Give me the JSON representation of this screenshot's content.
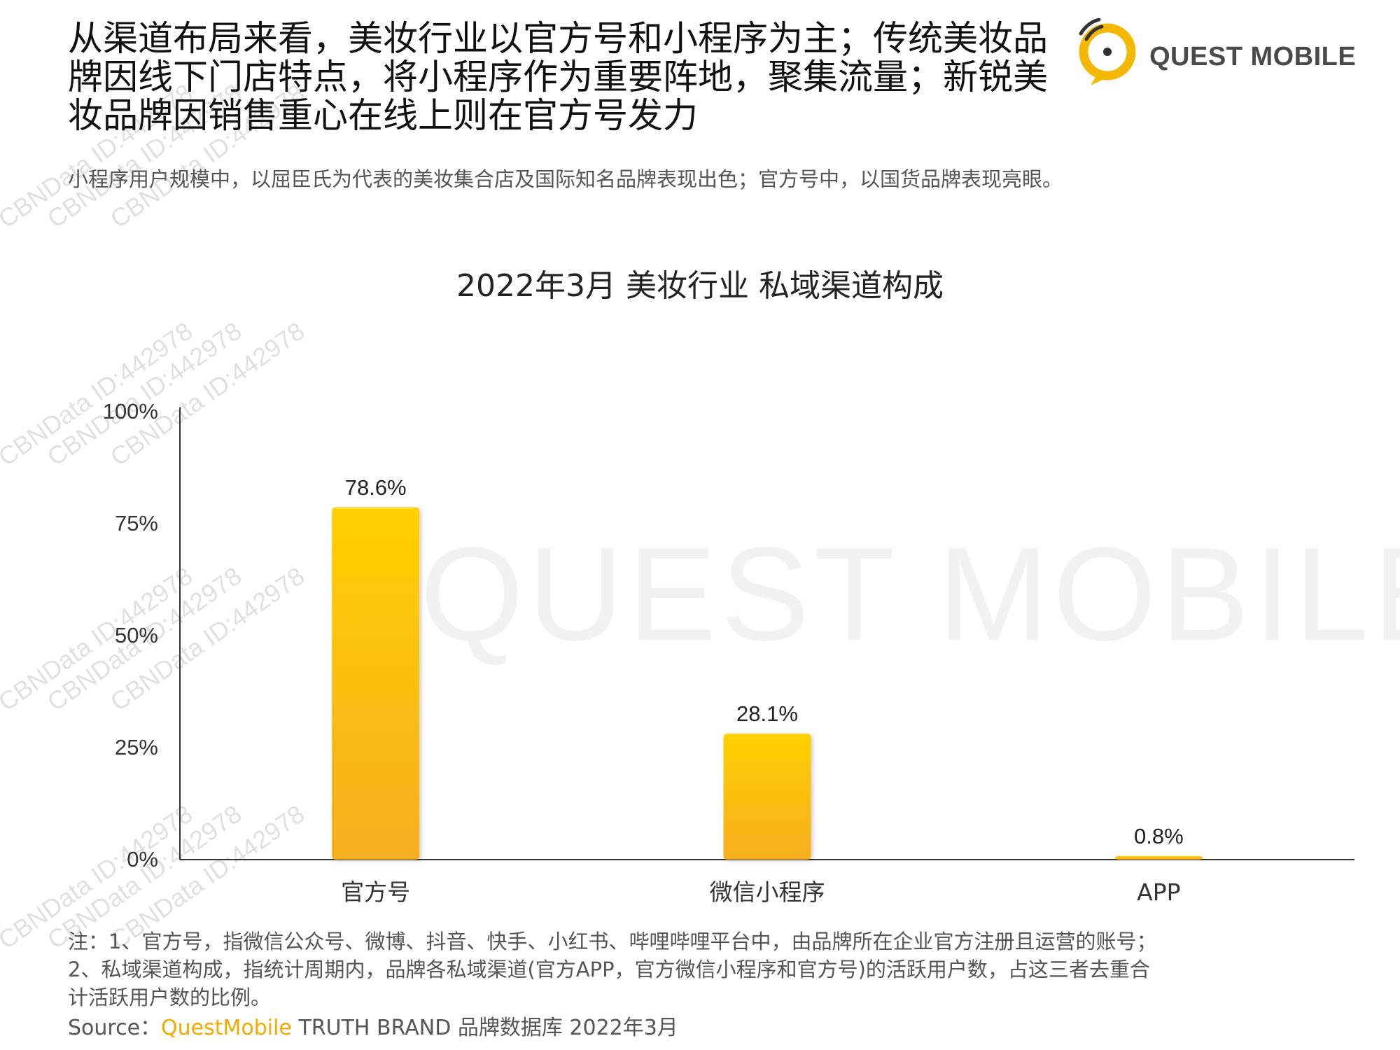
{
  "header": {
    "headline": "从渠道布局来看，美妆行业以官方号和小程序为主；传统美妆品牌因线下门店特点，将小程序作为重要阵地，聚集流量；新锐美妆品牌因销售重心在线上则在官方号发力",
    "subline": "小程序用户规模中，以屈臣氏为代表的美妆集合店及国际知名品牌表现出色；官方号中，以国货品牌表现亮眼。"
  },
  "logo": {
    "text": "QUEST MOBILE",
    "colors": {
      "ring": "#F5B800",
      "text": "#4A4A4A"
    }
  },
  "watermark": {
    "text": "QUEST MOBILE",
    "stamps": [
      "CBNData ID:442978",
      "CBNData ID:442978",
      "CBNData ID:442978",
      "CBNData ID:442978",
      "CBNData ID:442978",
      "CBNData ID:442978",
      "CBNData ID:442978",
      "CBNData ID:442978",
      "CBNData ID:442978",
      "CBNData ID:442978",
      "CBNData ID:442978",
      "CBNData ID:442978"
    ]
  },
  "chart_data": {
    "type": "bar",
    "title": "2022年3月 美妆行业 私域渠道构成",
    "categories": [
      "官方号",
      "微信小程序",
      "APP"
    ],
    "values": [
      78.6,
      28.1,
      0.8
    ],
    "data_labels": [
      "78.6%",
      "28.1%",
      "0.8%"
    ],
    "ylim": [
      0,
      100
    ],
    "yticks": [
      0,
      25,
      50,
      75,
      100
    ],
    "ytick_labels": [
      "0%",
      "25%",
      "50%",
      "75%",
      "100%"
    ],
    "xlabel": "",
    "ylabel": "",
    "grid": false,
    "colors": {
      "bar_top": "#FFD000",
      "bar_bottom": "#F7AE20",
      "axis": "#333333"
    }
  },
  "footer": {
    "note_lines": [
      "注：1、官方号，指微信公众号、微博、抖音、快手、小红书、哔哩哔哩平台中，由品牌所在企业官方注册且运营的账号；",
      "2、私域渠道构成，指统计周期内，品牌各私域渠道(官方APP，官方微信小程序和官方号)的活跃用户数，占这三者去重合",
      "计活跃用户数的比例。"
    ],
    "source_prefix": "Source：",
    "source_brand": "QuestMobile",
    "source_rest": " TRUTH BRAND 品牌数据库 2022年3月"
  }
}
